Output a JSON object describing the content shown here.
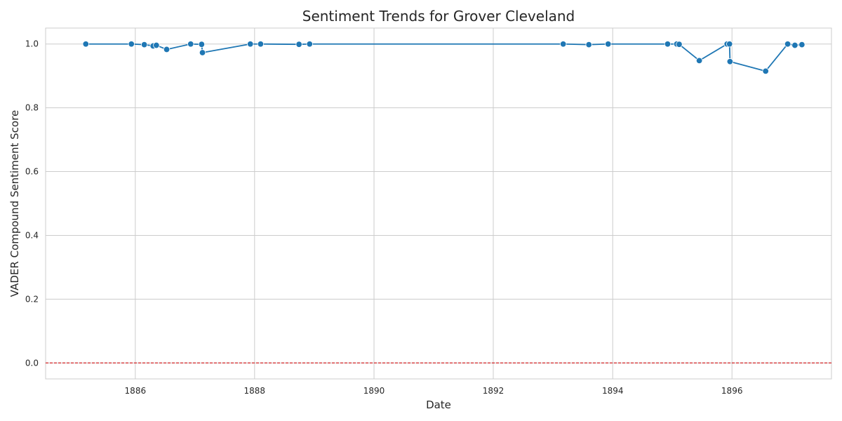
{
  "chart_data": {
    "type": "line",
    "title": "Sentiment Trends for Grover Cleveland",
    "xlabel": "Date",
    "ylabel": "VADER Compound Sentiment Score",
    "x_ticks": [
      "1886",
      "1888",
      "1890",
      "1892",
      "1894",
      "1896"
    ],
    "y_ticks": [
      "0.0",
      "0.2",
      "0.4",
      "0.6",
      "0.8",
      "1.0"
    ],
    "ylim": [
      -0.05,
      1.05
    ],
    "xlim": [
      "1884-07-01",
      "1897-09-01"
    ],
    "grid": true,
    "reference_line": {
      "y": 0.0,
      "color": "#d62728",
      "style": "dashed"
    },
    "series": [
      {
        "color": "#1f77b4",
        "points": [
          {
            "x": "1885-03-04",
            "y": 1.0
          },
          {
            "x": "1885-12-08",
            "y": 1.0
          },
          {
            "x": "1886-02-25",
            "y": 0.998
          },
          {
            "x": "1886-04-20",
            "y": 0.994
          },
          {
            "x": "1886-05-10",
            "y": 0.996
          },
          {
            "x": "1886-07-12",
            "y": 0.983
          },
          {
            "x": "1886-12-06",
            "y": 1.0
          },
          {
            "x": "1887-02-11",
            "y": 0.999
          },
          {
            "x": "1887-02-16",
            "y": 0.973
          },
          {
            "x": "1887-12-06",
            "y": 1.0
          },
          {
            "x": "1888-02-07",
            "y": 1.0
          },
          {
            "x": "1888-09-29",
            "y": 0.999
          },
          {
            "x": "1888-12-03",
            "y": 1.0
          },
          {
            "x": "1893-03-04",
            "y": 1.0
          },
          {
            "x": "1893-08-08",
            "y": 0.998
          },
          {
            "x": "1893-12-04",
            "y": 1.0
          },
          {
            "x": "1894-12-03",
            "y": 1.0
          },
          {
            "x": "1895-01-28",
            "y": 1.0
          },
          {
            "x": "1895-02-12",
            "y": 0.999
          },
          {
            "x": "1895-06-15",
            "y": 0.948
          },
          {
            "x": "1895-12-02",
            "y": 1.0
          },
          {
            "x": "1895-12-17",
            "y": 1.0
          },
          {
            "x": "1895-12-20",
            "y": 0.945
          },
          {
            "x": "1896-07-25",
            "y": 0.915
          },
          {
            "x": "1896-12-07",
            "y": 1.0
          },
          {
            "x": "1897-01-20",
            "y": 0.996
          },
          {
            "x": "1897-03-04",
            "y": 0.998
          }
        ]
      }
    ]
  }
}
